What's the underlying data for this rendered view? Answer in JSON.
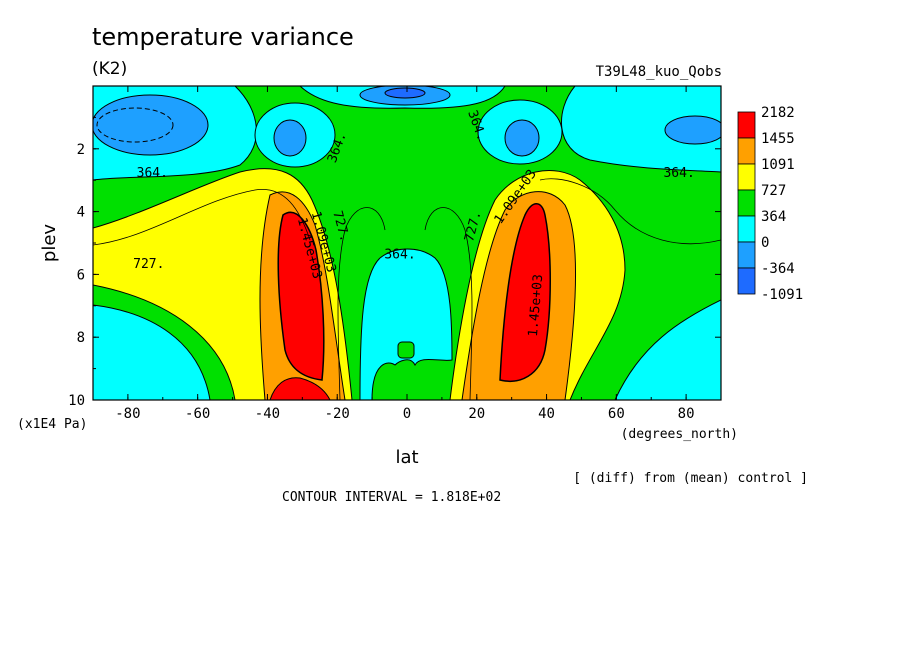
{
  "chart_data": {
    "type": "heatmap",
    "title": "temperature variance",
    "units_label": "(K2)",
    "run_label": "T39L48_kuo_Qobs",
    "xlabel": "lat",
    "x_units": "(degrees_north)",
    "ylabel": "plev",
    "y_units": "(x1E4 Pa)",
    "diff_note": "[ (diff) from (mean) control ]",
    "contour_interval": "CONTOUR INTERVAL = 1.818E+02",
    "xlim": [
      -90,
      90
    ],
    "ylim": [
      10,
      0
    ],
    "x_ticks": [
      -80,
      -60,
      -40,
      -20,
      0,
      20,
      40,
      60,
      80
    ],
    "y_ticks": [
      2,
      4,
      6,
      8,
      10
    ],
    "levels": [
      {
        "label": "-1091",
        "color": "#1e6bff"
      },
      {
        "label": "-364",
        "color": "#1ea0ff"
      },
      {
        "label": "0",
        "color": "#00ffff"
      },
      {
        "label": "364",
        "color": "#00e000"
      },
      {
        "label": "727",
        "color": "#ffff00"
      },
      {
        "label": "1091",
        "color": "#ffa000"
      },
      {
        "label": "1455",
        "color": "#ff0000"
      },
      {
        "label": "2182",
        "color": ""
      }
    ],
    "contour_labels": [
      {
        "text": "364.",
        "lat": -73,
        "p": 2.9,
        "rot": 0
      },
      {
        "text": "364.",
        "lat": -19,
        "p": 2.0,
        "rot": -70
      },
      {
        "text": "364.",
        "lat": 19,
        "p": 1.3,
        "rot": 70
      },
      {
        "text": "364.",
        "lat": 78,
        "p": 2.9,
        "rot": 0
      },
      {
        "text": "364.",
        "lat": -2,
        "p": 5.5,
        "rot": 0
      },
      {
        "text": "727.",
        "lat": -74,
        "p": 5.8,
        "rot": 0
      },
      {
        "text": "727.",
        "lat": -20,
        "p": 4.5,
        "rot": 75
      },
      {
        "text": "727.",
        "lat": 20,
        "p": 4.5,
        "rot": -75
      },
      {
        "text": "1.09e+03",
        "lat": -25,
        "p": 5.0,
        "rot": 75
      },
      {
        "text": "1.09e+03",
        "lat": 32,
        "p": 3.6,
        "rot": -55
      },
      {
        "text": "1.45e+03",
        "lat": -29,
        "p": 5.2,
        "rot": 75
      },
      {
        "text": "1.45e+03",
        "lat": 38,
        "p": 7.0,
        "rot": -85
      }
    ]
  }
}
